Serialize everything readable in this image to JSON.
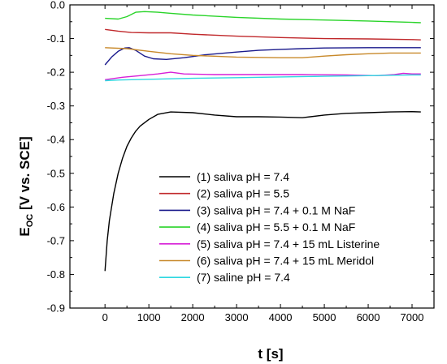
{
  "chart_data": {
    "type": "line",
    "xlabel": "t [s]",
    "ylabel_main": "E",
    "ylabel_sub": "OC",
    "ylabel_rest": " [V vs. SCE]",
    "xlim": [
      -800,
      7500
    ],
    "ylim": [
      -0.9,
      0.0
    ],
    "x_ticks": [
      0,
      1000,
      2000,
      3000,
      4000,
      5000,
      6000,
      7000
    ],
    "x_tick_labels": [
      "0",
      "1000",
      "2000",
      "3000",
      "4000",
      "5000",
      "6000",
      "7000"
    ],
    "y_ticks": [
      0.0,
      -0.1,
      -0.2,
      -0.3,
      -0.4,
      -0.5,
      -0.6,
      -0.7,
      -0.8,
      -0.9
    ],
    "y_tick_labels": [
      "0.0",
      "-0.1",
      "-0.2",
      "-0.3",
      "-0.4",
      "-0.5",
      "-0.6",
      "-0.7",
      "-0.8",
      "-0.9"
    ],
    "grid": false,
    "legend_position": "lower-right",
    "series": [
      {
        "name": "(1) saliva pH = 7.4",
        "color": "#000000",
        "points": [
          [
            0,
            -0.79
          ],
          [
            50,
            -0.7
          ],
          [
            100,
            -0.64
          ],
          [
            200,
            -0.56
          ],
          [
            300,
            -0.5
          ],
          [
            400,
            -0.455
          ],
          [
            500,
            -0.42
          ],
          [
            600,
            -0.395
          ],
          [
            700,
            -0.375
          ],
          [
            800,
            -0.36
          ],
          [
            1000,
            -0.34
          ],
          [
            1200,
            -0.325
          ],
          [
            1500,
            -0.318
          ],
          [
            2000,
            -0.32
          ],
          [
            2500,
            -0.327
          ],
          [
            3000,
            -0.332
          ],
          [
            3500,
            -0.332
          ],
          [
            4000,
            -0.333
          ],
          [
            4500,
            -0.335
          ],
          [
            5000,
            -0.327
          ],
          [
            5500,
            -0.322
          ],
          [
            6000,
            -0.32
          ],
          [
            6500,
            -0.318
          ],
          [
            7000,
            -0.317
          ],
          [
            7200,
            -0.318
          ]
        ]
      },
      {
        "name": "(2) saliva pH = 5.5",
        "color": "#c0282b",
        "points": [
          [
            0,
            -0.073
          ],
          [
            300,
            -0.078
          ],
          [
            600,
            -0.082
          ],
          [
            1000,
            -0.083
          ],
          [
            1500,
            -0.083
          ],
          [
            2000,
            -0.087
          ],
          [
            3000,
            -0.093
          ],
          [
            4000,
            -0.097
          ],
          [
            5000,
            -0.1
          ],
          [
            6000,
            -0.101
          ],
          [
            7000,
            -0.103
          ],
          [
            7200,
            -0.104
          ]
        ]
      },
      {
        "name": "(3) saliva pH = 7.4 + 0.1 M NaF",
        "color": "#1a1a8c",
        "points": [
          [
            0,
            -0.178
          ],
          [
            150,
            -0.155
          ],
          [
            300,
            -0.138
          ],
          [
            450,
            -0.128
          ],
          [
            550,
            -0.127
          ],
          [
            700,
            -0.135
          ],
          [
            900,
            -0.152
          ],
          [
            1100,
            -0.16
          ],
          [
            1400,
            -0.162
          ],
          [
            1800,
            -0.157
          ],
          [
            2300,
            -0.148
          ],
          [
            3000,
            -0.14
          ],
          [
            3500,
            -0.135
          ],
          [
            4000,
            -0.132
          ],
          [
            4500,
            -0.13
          ],
          [
            5000,
            -0.128
          ],
          [
            6000,
            -0.127
          ],
          [
            7000,
            -0.127
          ],
          [
            7200,
            -0.127
          ]
        ]
      },
      {
        "name": "(4) saliva pH = 5.5 + 0.1 M NaF",
        "color": "#2ad42a",
        "points": [
          [
            0,
            -0.04
          ],
          [
            300,
            -0.042
          ],
          [
            500,
            -0.035
          ],
          [
            700,
            -0.022
          ],
          [
            900,
            -0.02
          ],
          [
            1200,
            -0.022
          ],
          [
            1500,
            -0.025
          ],
          [
            2000,
            -0.03
          ],
          [
            3000,
            -0.037
          ],
          [
            4000,
            -0.042
          ],
          [
            5000,
            -0.045
          ],
          [
            6000,
            -0.048
          ],
          [
            7000,
            -0.052
          ],
          [
            7200,
            -0.053
          ]
        ]
      },
      {
        "name": "(5) saliva pH = 7.4 + 15 mL Listerine",
        "color": "#d71fd7",
        "points": [
          [
            0,
            -0.222
          ],
          [
            400,
            -0.215
          ],
          [
            800,
            -0.21
          ],
          [
            1200,
            -0.205
          ],
          [
            1500,
            -0.2
          ],
          [
            1800,
            -0.205
          ],
          [
            2500,
            -0.207
          ],
          [
            3500,
            -0.207
          ],
          [
            4500,
            -0.207
          ],
          [
            5500,
            -0.208
          ],
          [
            6200,
            -0.21
          ],
          [
            6600,
            -0.207
          ],
          [
            6800,
            -0.203
          ],
          [
            7000,
            -0.205
          ],
          [
            7200,
            -0.205
          ]
        ]
      },
      {
        "name": "(6) saliva pH = 7.4 + 15 mL Meridol",
        "color": "#c8892a",
        "points": [
          [
            0,
            -0.127
          ],
          [
            500,
            -0.13
          ],
          [
            1000,
            -0.138
          ],
          [
            1500,
            -0.145
          ],
          [
            2000,
            -0.15
          ],
          [
            3000,
            -0.155
          ],
          [
            4000,
            -0.157
          ],
          [
            4500,
            -0.157
          ],
          [
            5000,
            -0.152
          ],
          [
            5500,
            -0.148
          ],
          [
            6000,
            -0.145
          ],
          [
            6500,
            -0.143
          ],
          [
            7000,
            -0.143
          ],
          [
            7200,
            -0.143
          ]
        ]
      },
      {
        "name": "(7) saline pH = 7.4",
        "color": "#2ed8e0",
        "points": [
          [
            0,
            -0.225
          ],
          [
            300,
            -0.223
          ],
          [
            600,
            -0.222
          ],
          [
            1000,
            -0.221
          ],
          [
            2000,
            -0.218
          ],
          [
            3000,
            -0.216
          ],
          [
            4000,
            -0.214
          ],
          [
            5000,
            -0.212
          ],
          [
            6000,
            -0.21
          ],
          [
            7000,
            -0.208
          ],
          [
            7200,
            -0.208
          ]
        ]
      }
    ]
  }
}
